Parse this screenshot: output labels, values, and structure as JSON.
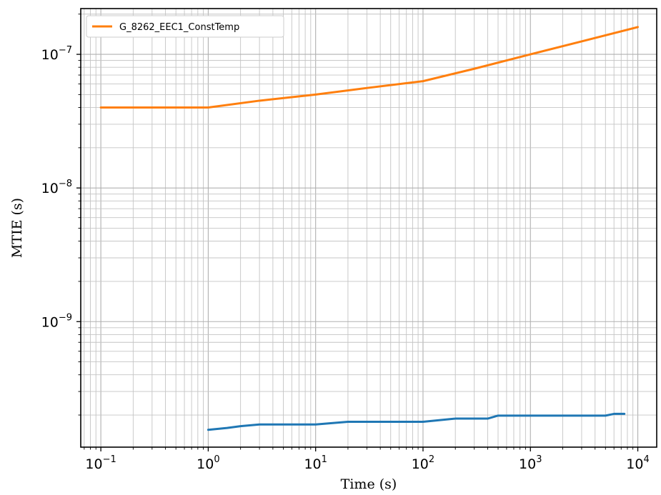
{
  "chart_data": {
    "type": "line",
    "xlabel": "Time (s)",
    "ylabel": "MTIE (s)",
    "xscale": "log",
    "yscale": "log",
    "xlim": [
      0.065,
      15000
    ],
    "ylim": [
      1.15e-10,
      2.2e-07
    ],
    "x_ticks": [
      {
        "value": 0.1,
        "base": "10",
        "exp": "−1"
      },
      {
        "value": 1,
        "base": "10",
        "exp": "0"
      },
      {
        "value": 10,
        "base": "10",
        "exp": "1"
      },
      {
        "value": 100,
        "base": "10",
        "exp": "2"
      },
      {
        "value": 1000,
        "base": "10",
        "exp": "3"
      },
      {
        "value": 10000,
        "base": "10",
        "exp": "4"
      }
    ],
    "y_ticks": [
      {
        "value": 1e-09,
        "base": "10",
        "exp": "−9"
      },
      {
        "value": 1e-08,
        "base": "10",
        "exp": "−8"
      },
      {
        "value": 1e-07,
        "base": "10",
        "exp": "−7"
      }
    ],
    "grid": true,
    "grid_minor": true,
    "legend_position": "top-left",
    "series": [
      {
        "name": "G_8262_EEC1_ConstTemp",
        "color": "#ff7f0e",
        "legend": true,
        "points": [
          [
            0.1,
            4e-08
          ],
          [
            1,
            4e-08
          ],
          [
            3,
            4.5e-08
          ],
          [
            10,
            5e-08
          ],
          [
            30,
            5.6e-08
          ],
          [
            100,
            6.3e-08
          ],
          [
            300,
            7.8e-08
          ],
          [
            1000,
            1e-07
          ],
          [
            3000,
            1.25e-07
          ],
          [
            10000,
            1.6e-07
          ]
        ]
      },
      {
        "color": "#1f77b4",
        "legend": false,
        "points": [
          [
            1,
            1.55e-10
          ],
          [
            1.5,
            1.6e-10
          ],
          [
            2,
            1.65e-10
          ],
          [
            3,
            1.7e-10
          ],
          [
            10,
            1.7e-10
          ],
          [
            20,
            1.78e-10
          ],
          [
            100,
            1.78e-10
          ],
          [
            200,
            1.88e-10
          ],
          [
            400,
            1.88e-10
          ],
          [
            500,
            1.98e-10
          ],
          [
            5000,
            1.98e-10
          ],
          [
            6000,
            2.04e-10
          ],
          [
            7500,
            2.04e-10
          ]
        ]
      }
    ]
  }
}
